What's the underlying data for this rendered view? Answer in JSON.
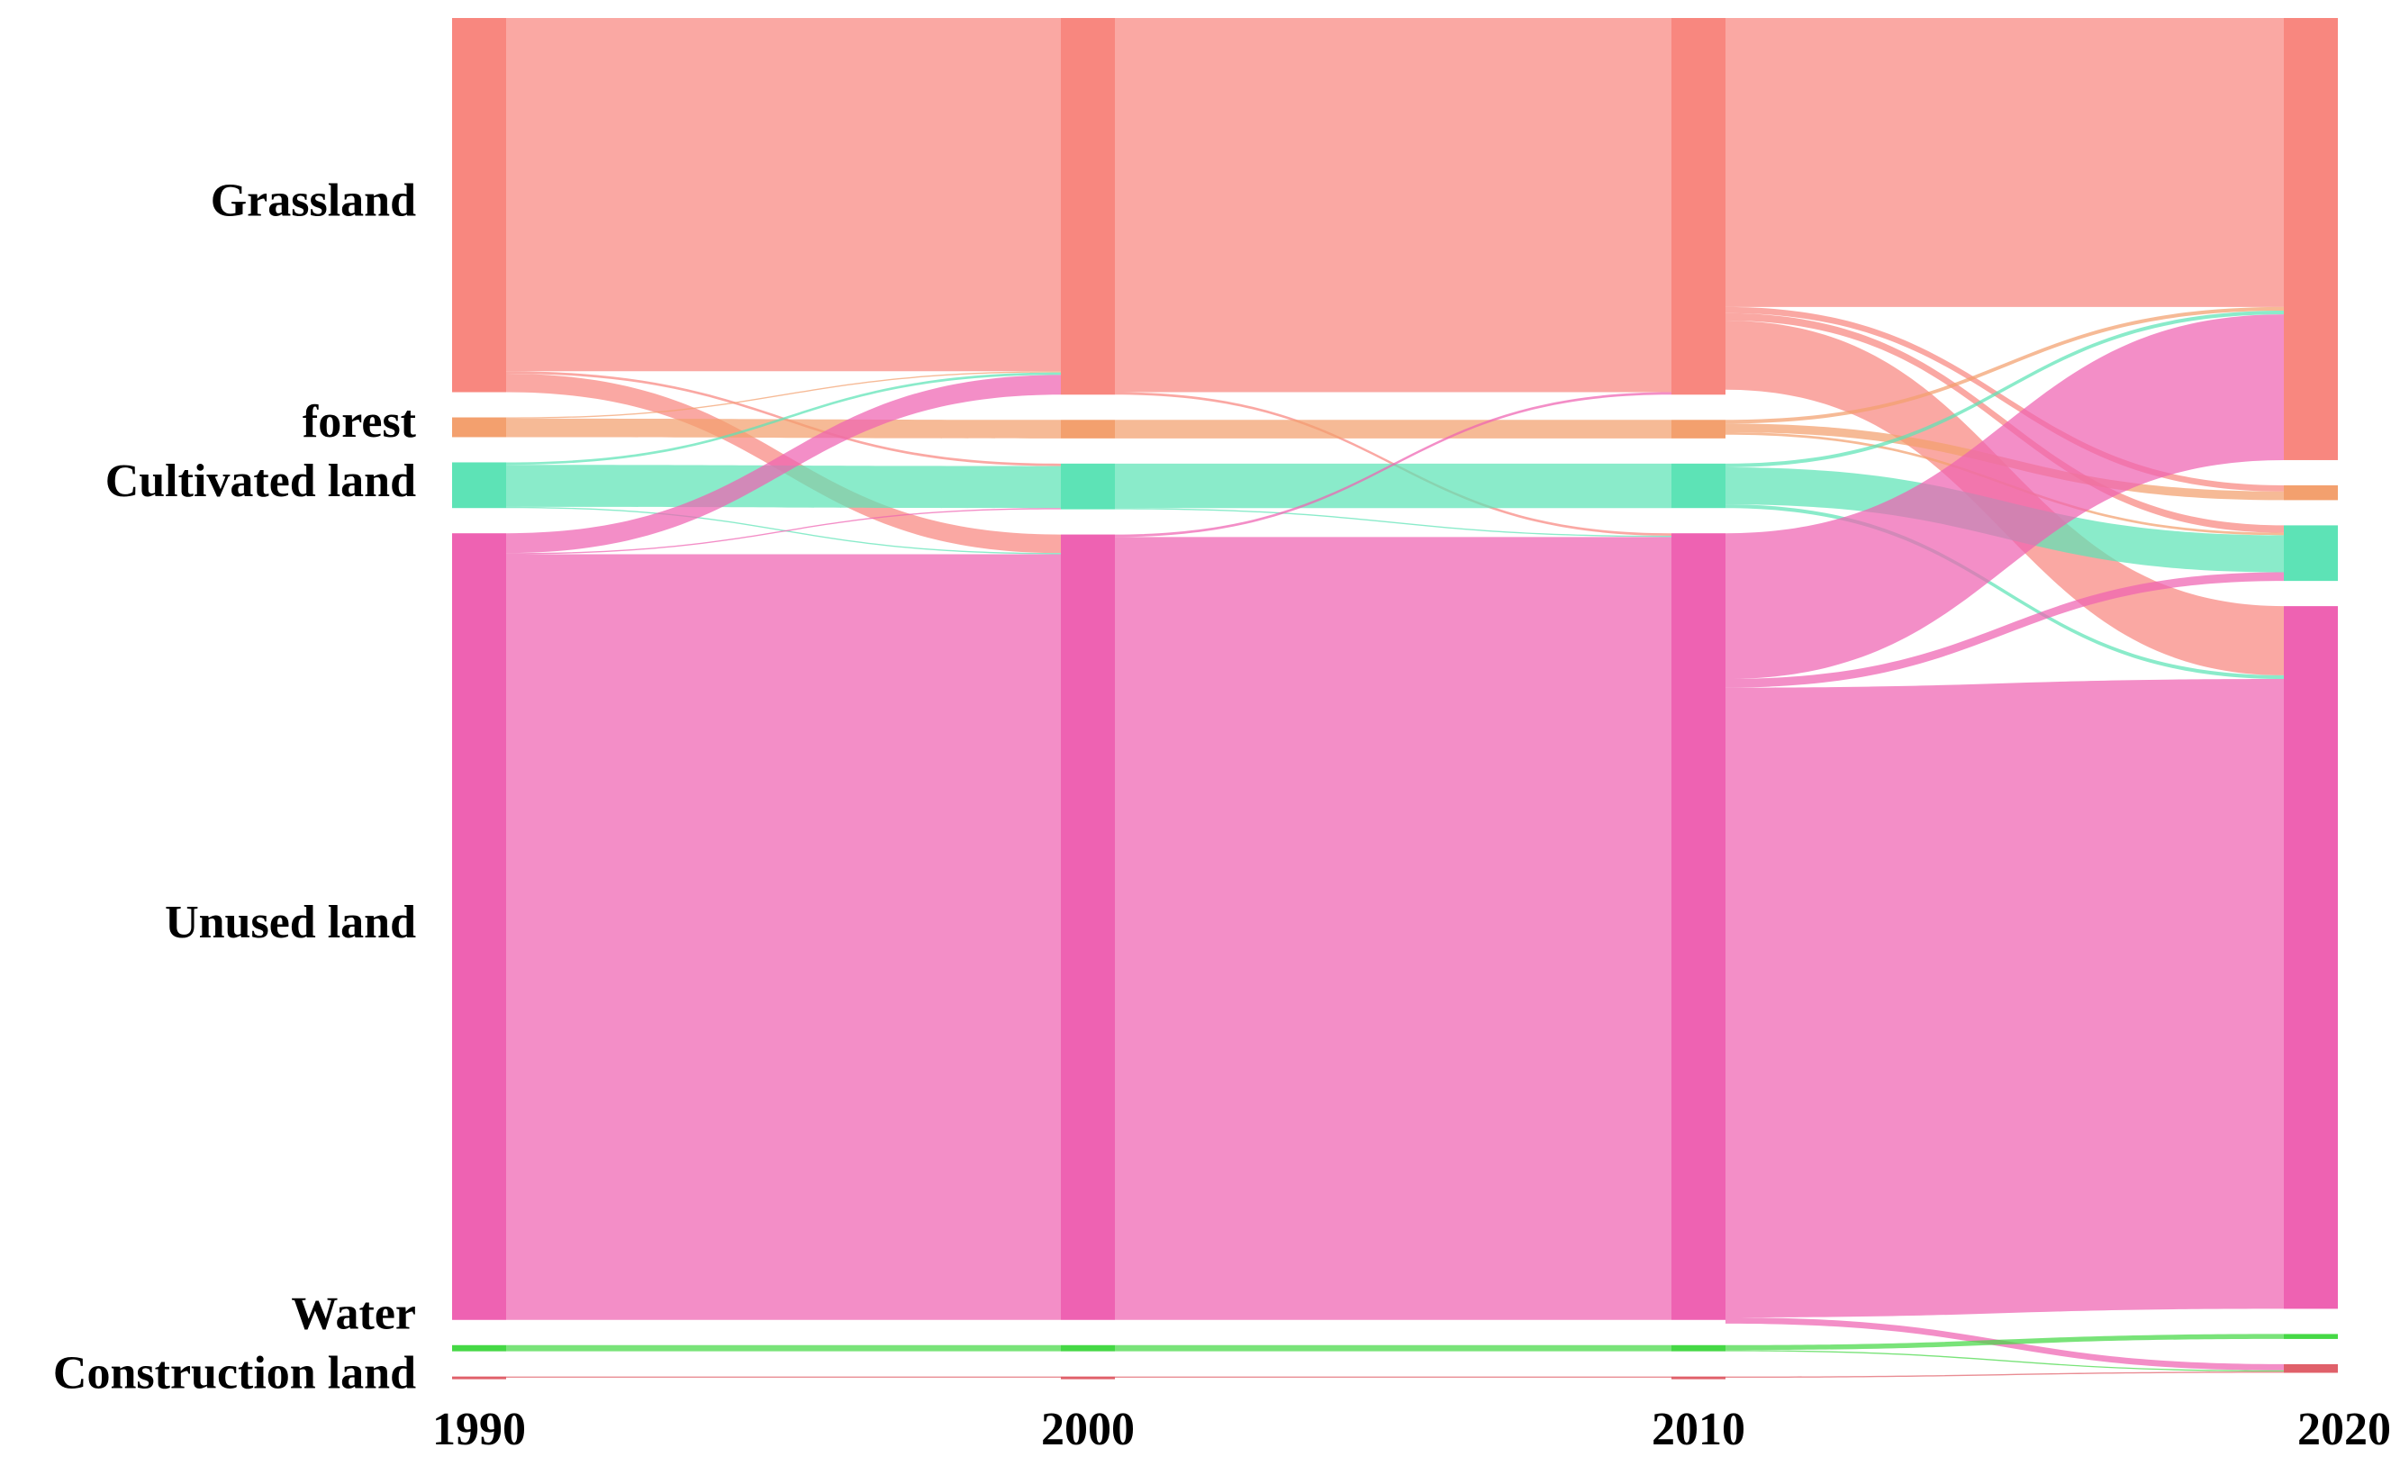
{
  "chart_data": {
    "type": "sankey",
    "x": [
      "1990",
      "2000",
      "2010",
      "2020"
    ],
    "series": [
      {
        "name": "Grassland",
        "color": "#f8877f",
        "values": [
          30.3,
          30.5,
          30.5,
          35.8
        ]
      },
      {
        "name": "forest",
        "color": "#f3a06e",
        "values": [
          1.6,
          1.5,
          1.5,
          1.2
        ]
      },
      {
        "name": "Cultivated land",
        "color": "#5de3b6",
        "values": [
          3.7,
          3.7,
          3.6,
          4.5
        ]
      },
      {
        "name": "Unused land",
        "color": "#ee62b2",
        "values": [
          63.7,
          63.6,
          63.7,
          56.9
        ]
      },
      {
        "name": "Water",
        "color": "#45d845",
        "values": [
          0.5,
          0.5,
          0.5,
          0.4
        ]
      },
      {
        "name": "Construction land",
        "color": "#e0606a",
        "values": [
          0.1,
          0.1,
          0.1,
          0.7
        ]
      }
    ],
    "flows": [
      {
        "from": "1990",
        "source": "Grassland",
        "target": "Grassland",
        "value": 28.6
      },
      {
        "from": "1990",
        "source": "Grassland",
        "target": "Cultivated land",
        "value": 0.2
      },
      {
        "from": "1990",
        "source": "Grassland",
        "target": "Unused land",
        "value": 1.5
      },
      {
        "from": "1990",
        "source": "forest",
        "target": "Grassland",
        "value": 0.1
      },
      {
        "from": "1990",
        "source": "forest",
        "target": "forest",
        "value": 1.5
      },
      {
        "from": "1990",
        "source": "Cultivated land",
        "target": "Grassland",
        "value": 0.2
      },
      {
        "from": "1990",
        "source": "Cultivated land",
        "target": "Cultivated land",
        "value": 3.4
      },
      {
        "from": "1990",
        "source": "Cultivated land",
        "target": "Unused land",
        "value": 0.1
      },
      {
        "from": "1990",
        "source": "Unused land",
        "target": "Grassland",
        "value": 1.6
      },
      {
        "from": "1990",
        "source": "Unused land",
        "target": "Cultivated land",
        "value": 0.1
      },
      {
        "from": "1990",
        "source": "Unused land",
        "target": "Unused land",
        "value": 62.0
      },
      {
        "from": "1990",
        "source": "Water",
        "target": "Water",
        "value": 0.5
      },
      {
        "from": "1990",
        "source": "Construction land",
        "target": "Construction land",
        "value": 0.1
      },
      {
        "from": "2000",
        "source": "Grassland",
        "target": "Grassland",
        "value": 30.3
      },
      {
        "from": "2000",
        "source": "Grassland",
        "target": "Unused land",
        "value": 0.2
      },
      {
        "from": "2000",
        "source": "forest",
        "target": "forest",
        "value": 1.5
      },
      {
        "from": "2000",
        "source": "Cultivated land",
        "target": "Cultivated land",
        "value": 3.6
      },
      {
        "from": "2000",
        "source": "Cultivated land",
        "target": "Unused land",
        "value": 0.1
      },
      {
        "from": "2000",
        "source": "Unused land",
        "target": "Grassland",
        "value": 0.2
      },
      {
        "from": "2000",
        "source": "Unused land",
        "target": "Unused land",
        "value": 63.4
      },
      {
        "from": "2000",
        "source": "Water",
        "target": "Water",
        "value": 0.5
      },
      {
        "from": "2000",
        "source": "Construction land",
        "target": "Construction land",
        "value": 0.1
      },
      {
        "from": "2010",
        "source": "Grassland",
        "target": "Grassland",
        "value": 23.4
      },
      {
        "from": "2010",
        "source": "Grassland",
        "target": "forest",
        "value": 0.5
      },
      {
        "from": "2010",
        "source": "Grassland",
        "target": "Cultivated land",
        "value": 0.6
      },
      {
        "from": "2010",
        "source": "Grassland",
        "target": "Unused land",
        "value": 5.6
      },
      {
        "from": "2010",
        "source": "forest",
        "target": "Grassland",
        "value": 0.3
      },
      {
        "from": "2010",
        "source": "forest",
        "target": "forest",
        "value": 0.7
      },
      {
        "from": "2010",
        "source": "forest",
        "target": "Cultivated land",
        "value": 0.2
      },
      {
        "from": "2010",
        "source": "Cultivated land",
        "target": "Grassland",
        "value": 0.3
      },
      {
        "from": "2010",
        "source": "Cultivated land",
        "target": "Cultivated land",
        "value": 3.0
      },
      {
        "from": "2010",
        "source": "Cultivated land",
        "target": "Unused land",
        "value": 0.3
      },
      {
        "from": "2010",
        "source": "Unused land",
        "target": "Grassland",
        "value": 11.8
      },
      {
        "from": "2010",
        "source": "Unused land",
        "target": "Cultivated land",
        "value": 0.7
      },
      {
        "from": "2010",
        "source": "Unused land",
        "target": "Unused land",
        "value": 51.0
      },
      {
        "from": "2010",
        "source": "Unused land",
        "target": "Construction land",
        "value": 0.5
      },
      {
        "from": "2010",
        "source": "Water",
        "target": "Water",
        "value": 0.4
      },
      {
        "from": "2010",
        "source": "Water",
        "target": "Construction land",
        "value": 0.1
      },
      {
        "from": "2010",
        "source": "Construction land",
        "target": "Construction land",
        "value": 0.1
      }
    ]
  }
}
